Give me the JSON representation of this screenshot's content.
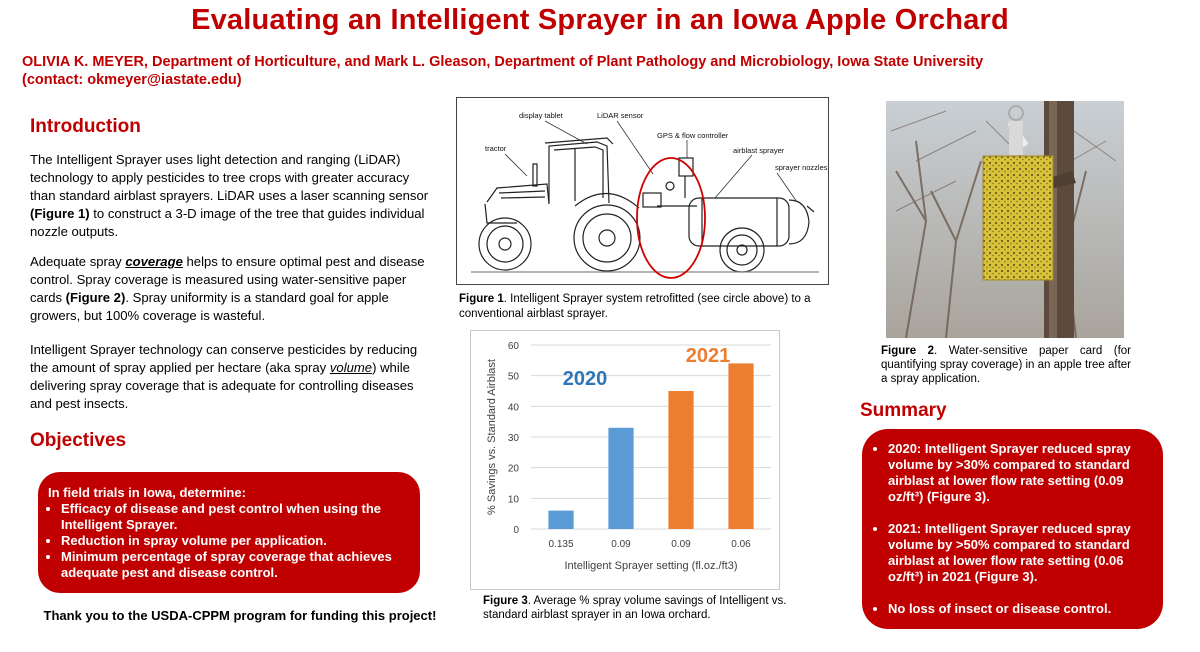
{
  "title": "Evaluating an Intelligent Sprayer in an Iowa Apple Orchard",
  "authors": {
    "line1": "OLIVIA K. MEYER, Department of Horticulture, and Mark L. Gleason, Department of Plant Pathology and Microbiology, Iowa State University",
    "line2": "(contact: okmeyer@iastate.edu)"
  },
  "introduction": {
    "heading": "Introduction",
    "p1_a": "The Intelligent Sprayer uses light detection and ranging (LiDAR) technology to apply pesticides to tree crops with greater accuracy than standard airblast sprayers. LiDAR uses a laser scanning sensor ",
    "p1_b": "(Figure 1)",
    "p1_c": " to construct a 3-D image of the tree that guides individual nozzle outputs.",
    "p2_a": "Adequate spray ",
    "p2_b": "coverage",
    "p2_c": " helps to ensure optimal pest and disease control. Spray coverage is measured using water-sensitive paper cards ",
    "p2_d": "(Figure 2)",
    "p2_e": ". Spray uniformity is a standard goal for apple growers, but 100% coverage is wasteful.",
    "p3_a": "Intelligent Sprayer technology can conserve pesticides by reducing the amount of spray applied per hectare (aka spray ",
    "p3_b": "volume",
    "p3_c": ") while delivering spray coverage that is adequate for controlling diseases and pest insects."
  },
  "objectives": {
    "heading": "Objectives",
    "lead": "In field trials in Iowa, determine:",
    "items": [
      "Efficacy of disease and pest control when using the Intelligent Sprayer.",
      "Reduction in spray volume per application.",
      "Minimum percentage of spray coverage that achieves adequate pest and disease control."
    ]
  },
  "thanks": "Thank you to the USDA-CPPM program for funding this project!",
  "figure1": {
    "labels": {
      "display_tablet": "display tablet",
      "lidar_sensor": "LiDAR sensor",
      "gps_flow": "GPS & flow controller",
      "tractor": "tractor",
      "airblast": "airblast sprayer",
      "nozzles": "sprayer nozzles"
    },
    "caption_bold": "Figure 1",
    "caption_rest": ". Intelligent Sprayer system retrofitted (see circle above) to a conventional airblast sprayer."
  },
  "figure2": {
    "caption_bold": "Figure 2",
    "caption_rest": ". Water-sensitive paper card (for quantifying spray coverage) in an apple tree after a spray application."
  },
  "figure3": {
    "caption_bold": "Figure 3",
    "caption_rest": ". Average % spray volume savings of Intelligent vs. standard airblast sprayer in an Iowa orchard."
  },
  "chart_data": {
    "type": "bar",
    "categories": [
      "0.135",
      "0.09",
      "0.09",
      "0.06"
    ],
    "values": [
      6,
      33,
      45,
      54
    ],
    "bar_colors": [
      "#5b9bd5",
      "#5b9bd5",
      "#ed7d31",
      "#ed7d31"
    ],
    "annotations": [
      {
        "text": "2020",
        "color": "#2e75b6"
      },
      {
        "text": "2021",
        "color": "#ed7d31"
      }
    ],
    "xlabel": "Intelligent Sprayer setting (fl.oz./ft3)",
    "ylabel": "% Savings vs. Standard Airblast",
    "ylim": [
      0,
      60
    ],
    "yticks": [
      "0",
      "10",
      "20",
      "30",
      "40",
      "50",
      "60"
    ],
    "grid": true
  },
  "summary": {
    "heading": "Summary",
    "items": [
      "2020: Intelligent Sprayer reduced spray volume by >30% compared to standard airblast at lower flow rate setting (0.09 oz/ft³) (Figure 3).",
      "2021: Intelligent Sprayer reduced spray volume by >50% compared to standard airblast at lower flow rate setting (0.06 oz/ft³) in 2021 (Figure 3).",
      "No loss of insect or disease control."
    ]
  },
  "colors": {
    "accent_red": "#c00000",
    "bar_blue": "#5b9bd5",
    "bar_orange": "#ed7d31"
  }
}
